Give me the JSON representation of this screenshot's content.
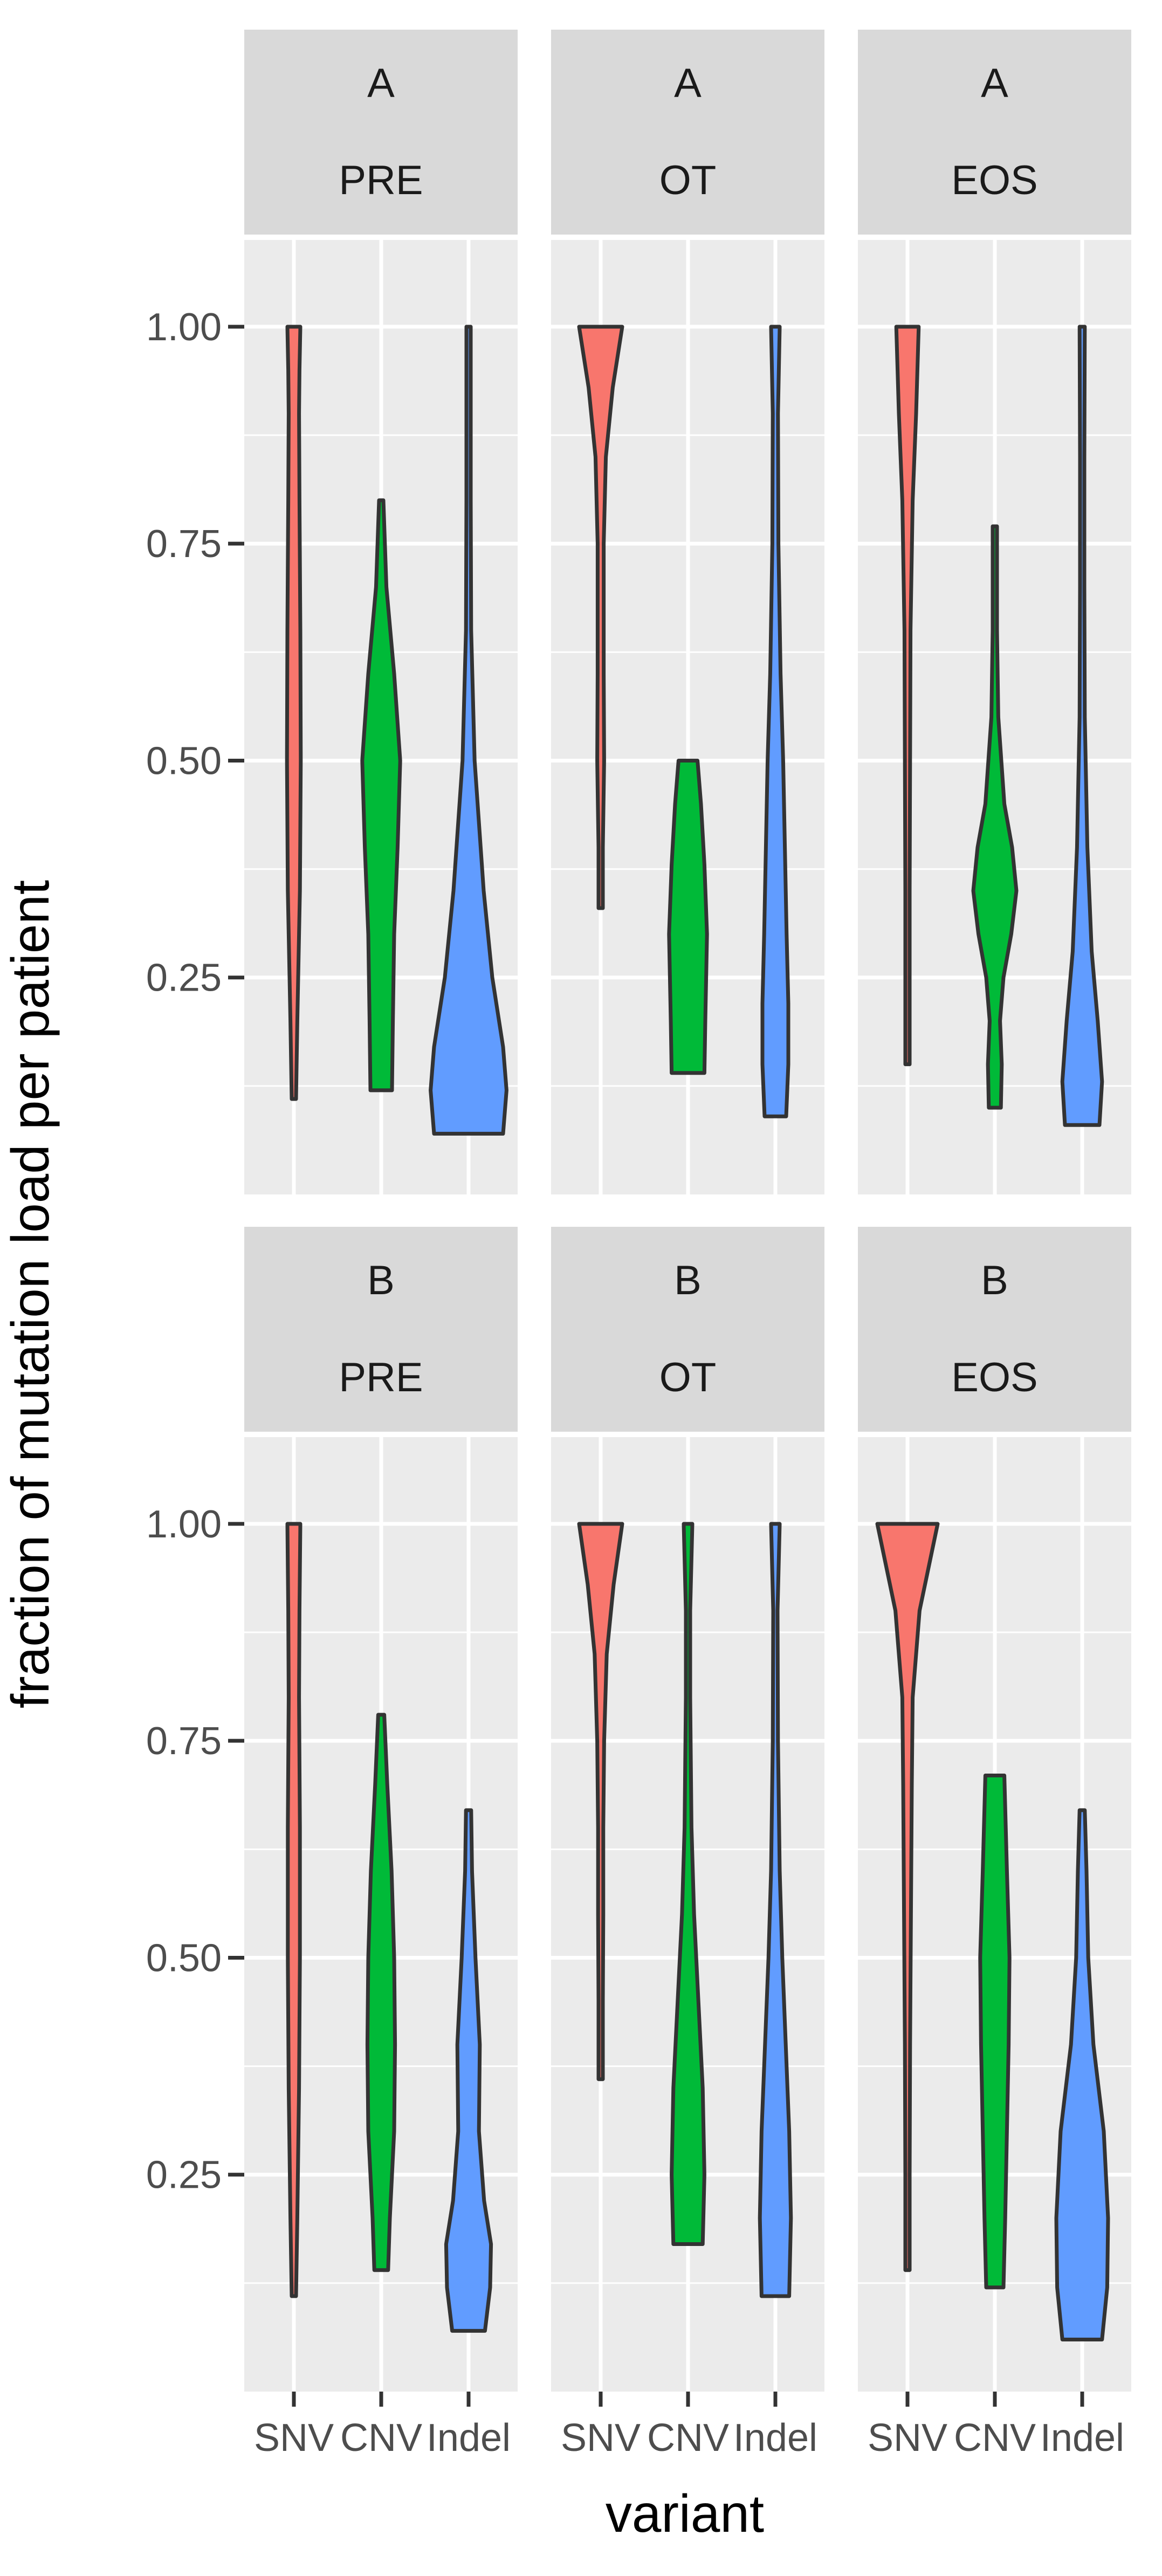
{
  "chart_data": {
    "type": "violin",
    "xlabel": "variant",
    "ylabel": "fraction of mutation load per patient",
    "categories": [
      "SNV",
      "CNV",
      "Indel"
    ],
    "y_ticks": [
      0.25,
      0.5,
      0.75,
      1.0
    ],
    "y_tick_labels": [
      "0.25",
      "0.50",
      "0.75",
      "1.00"
    ],
    "ylim": [
      0.0,
      1.1
    ],
    "grid": true,
    "legend": "none",
    "series_colors": {
      "SNV": "#F8766D",
      "CNV": "#00BA38",
      "Indel": "#619CFF"
    },
    "facet_rows": [
      "A",
      "B"
    ],
    "facet_cols": [
      "PRE",
      "OT",
      "EOS"
    ],
    "panels": [
      {
        "row": "A",
        "col": "PRE",
        "violins": [
          {
            "category": "SNV",
            "min": 0.11,
            "max": 1.0,
            "profile": [
              [
                0.11,
                0.02
              ],
              [
                0.2,
                0.08
              ],
              [
                0.35,
                0.14
              ],
              [
                0.5,
                0.16
              ],
              [
                0.65,
                0.15
              ],
              [
                0.8,
                0.13
              ],
              [
                0.9,
                0.12
              ],
              [
                0.95,
                0.13
              ],
              [
                1.0,
                0.15
              ]
            ]
          },
          {
            "category": "CNV",
            "min": 0.12,
            "max": 0.8,
            "profile": [
              [
                0.12,
                0.25
              ],
              [
                0.2,
                0.27
              ],
              [
                0.3,
                0.3
              ],
              [
                0.4,
                0.38
              ],
              [
                0.5,
                0.44
              ],
              [
                0.6,
                0.3
              ],
              [
                0.7,
                0.12
              ],
              [
                0.8,
                0.02
              ]
            ]
          },
          {
            "category": "Indel",
            "min": 0.07,
            "max": 1.0,
            "profile": [
              [
                0.07,
                0.8
              ],
              [
                0.12,
                0.88
              ],
              [
                0.17,
                0.8
              ],
              [
                0.25,
                0.55
              ],
              [
                0.35,
                0.35
              ],
              [
                0.5,
                0.14
              ],
              [
                0.65,
                0.06
              ],
              [
                0.8,
                0.04
              ],
              [
                0.95,
                0.03
              ],
              [
                1.0,
                0.03
              ]
            ]
          }
        ]
      },
      {
        "row": "A",
        "col": "OT",
        "violins": [
          {
            "category": "SNV",
            "min": 0.33,
            "max": 1.0,
            "profile": [
              [
                0.33,
                0.02
              ],
              [
                0.4,
                0.04
              ],
              [
                0.5,
                0.08
              ],
              [
                0.6,
                0.07
              ],
              [
                0.75,
                0.07
              ],
              [
                0.85,
                0.12
              ],
              [
                0.93,
                0.28
              ],
              [
                1.0,
                0.5
              ]
            ]
          },
          {
            "category": "CNV",
            "min": 0.14,
            "max": 0.5,
            "profile": [
              [
                0.14,
                0.38
              ],
              [
                0.2,
                0.4
              ],
              [
                0.3,
                0.44
              ],
              [
                0.38,
                0.38
              ],
              [
                0.45,
                0.3
              ],
              [
                0.5,
                0.22
              ]
            ]
          },
          {
            "category": "Indel",
            "min": 0.09,
            "max": 1.0,
            "profile": [
              [
                0.09,
                0.25
              ],
              [
                0.15,
                0.3
              ],
              [
                0.22,
                0.3
              ],
              [
                0.3,
                0.26
              ],
              [
                0.4,
                0.22
              ],
              [
                0.5,
                0.18
              ],
              [
                0.6,
                0.12
              ],
              [
                0.75,
                0.07
              ],
              [
                0.9,
                0.06
              ],
              [
                1.0,
                0.1
              ]
            ]
          }
        ]
      },
      {
        "row": "A",
        "col": "EOS",
        "violins": [
          {
            "category": "SNV",
            "min": 0.15,
            "max": 1.0,
            "profile": [
              [
                0.15,
                0.02
              ],
              [
                0.25,
                0.03
              ],
              [
                0.35,
                0.05
              ],
              [
                0.5,
                0.06
              ],
              [
                0.65,
                0.07
              ],
              [
                0.8,
                0.12
              ],
              [
                0.9,
                0.2
              ],
              [
                1.0,
                0.26
              ]
            ]
          },
          {
            "category": "CNV",
            "min": 0.1,
            "max": 0.77,
            "profile": [
              [
                0.1,
                0.14
              ],
              [
                0.15,
                0.16
              ],
              [
                0.2,
                0.12
              ],
              [
                0.25,
                0.2
              ],
              [
                0.3,
                0.38
              ],
              [
                0.35,
                0.5
              ],
              [
                0.4,
                0.4
              ],
              [
                0.45,
                0.22
              ],
              [
                0.55,
                0.08
              ],
              [
                0.65,
                0.04
              ],
              [
                0.77,
                0.04
              ]
            ]
          },
          {
            "category": "Indel",
            "min": 0.08,
            "max": 1.0,
            "profile": [
              [
                0.08,
                0.4
              ],
              [
                0.13,
                0.46
              ],
              [
                0.2,
                0.36
              ],
              [
                0.28,
                0.22
              ],
              [
                0.4,
                0.12
              ],
              [
                0.55,
                0.06
              ],
              [
                0.7,
                0.04
              ],
              [
                0.85,
                0.03
              ],
              [
                1.0,
                0.06
              ]
            ]
          }
        ]
      },
      {
        "row": "B",
        "col": "PRE",
        "violins": [
          {
            "category": "SNV",
            "min": 0.11,
            "max": 1.0,
            "profile": [
              [
                0.11,
                0.04
              ],
              [
                0.2,
                0.08
              ],
              [
                0.35,
                0.12
              ],
              [
                0.5,
                0.14
              ],
              [
                0.65,
                0.14
              ],
              [
                0.8,
                0.12
              ],
              [
                0.9,
                0.13
              ],
              [
                1.0,
                0.15
              ]
            ]
          },
          {
            "category": "CNV",
            "min": 0.14,
            "max": 0.78,
            "profile": [
              [
                0.14,
                0.16
              ],
              [
                0.2,
                0.2
              ],
              [
                0.3,
                0.3
              ],
              [
                0.4,
                0.32
              ],
              [
                0.5,
                0.3
              ],
              [
                0.6,
                0.24
              ],
              [
                0.7,
                0.14
              ],
              [
                0.78,
                0.07
              ]
            ]
          },
          {
            "category": "Indel",
            "min": 0.07,
            "max": 0.67,
            "profile": [
              [
                0.07,
                0.38
              ],
              [
                0.12,
                0.5
              ],
              [
                0.17,
                0.52
              ],
              [
                0.22,
                0.36
              ],
              [
                0.3,
                0.24
              ],
              [
                0.4,
                0.26
              ],
              [
                0.5,
                0.16
              ],
              [
                0.6,
                0.08
              ],
              [
                0.67,
                0.06
              ]
            ]
          }
        ]
      },
      {
        "row": "B",
        "col": "OT",
        "violins": [
          {
            "category": "SNV",
            "min": 0.36,
            "max": 1.0,
            "profile": [
              [
                0.36,
                0.02
              ],
              [
                0.45,
                0.04
              ],
              [
                0.55,
                0.06
              ],
              [
                0.65,
                0.06
              ],
              [
                0.75,
                0.08
              ],
              [
                0.85,
                0.14
              ],
              [
                0.93,
                0.3
              ],
              [
                1.0,
                0.5
              ]
            ]
          },
          {
            "category": "CNV",
            "min": 0.17,
            "max": 1.0,
            "profile": [
              [
                0.17,
                0.34
              ],
              [
                0.25,
                0.38
              ],
              [
                0.35,
                0.34
              ],
              [
                0.45,
                0.24
              ],
              [
                0.55,
                0.14
              ],
              [
                0.65,
                0.08
              ],
              [
                0.8,
                0.04
              ],
              [
                0.9,
                0.04
              ],
              [
                1.0,
                0.1
              ]
            ]
          },
          {
            "category": "Indel",
            "min": 0.11,
            "max": 1.0,
            "profile": [
              [
                0.11,
                0.32
              ],
              [
                0.2,
                0.36
              ],
              [
                0.3,
                0.32
              ],
              [
                0.4,
                0.24
              ],
              [
                0.5,
                0.16
              ],
              [
                0.6,
                0.1
              ],
              [
                0.75,
                0.06
              ],
              [
                0.9,
                0.05
              ],
              [
                1.0,
                0.1
              ]
            ]
          }
        ]
      },
      {
        "row": "B",
        "col": "EOS",
        "violins": [
          {
            "category": "SNV",
            "min": 0.14,
            "max": 1.0,
            "profile": [
              [
                0.14,
                0.02
              ],
              [
                0.25,
                0.04
              ],
              [
                0.4,
                0.06
              ],
              [
                0.55,
                0.08
              ],
              [
                0.7,
                0.1
              ],
              [
                0.8,
                0.12
              ],
              [
                0.9,
                0.28
              ],
              [
                1.0,
                0.7
              ]
            ]
          },
          {
            "category": "CNV",
            "min": 0.12,
            "max": 0.71,
            "profile": [
              [
                0.12,
                0.2
              ],
              [
                0.2,
                0.24
              ],
              [
                0.3,
                0.28
              ],
              [
                0.4,
                0.32
              ],
              [
                0.5,
                0.34
              ],
              [
                0.6,
                0.28
              ],
              [
                0.71,
                0.22
              ]
            ]
          },
          {
            "category": "Indel",
            "min": 0.06,
            "max": 0.67,
            "profile": [
              [
                0.06,
                0.46
              ],
              [
                0.12,
                0.58
              ],
              [
                0.2,
                0.6
              ],
              [
                0.3,
                0.5
              ],
              [
                0.4,
                0.26
              ],
              [
                0.5,
                0.14
              ],
              [
                0.6,
                0.1
              ],
              [
                0.67,
                0.06
              ]
            ]
          }
        ]
      }
    ]
  }
}
